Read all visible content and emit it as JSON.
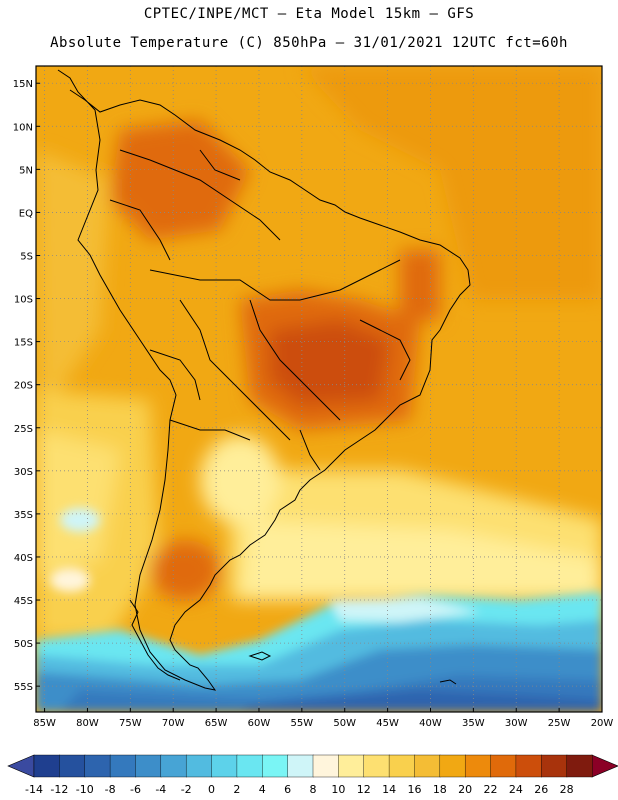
{
  "header": {
    "line1": "CPTEC/INPE/MCT –  Eta Model 15km – GFS",
    "line2": "Absolute Temperature (C) 850hPa – 31/01/2021 12UTC fct=60h"
  },
  "map": {
    "lat_labels": [
      "15N",
      "10N",
      "5N",
      "EQ",
      "5S",
      "10S",
      "15S",
      "20S",
      "25S",
      "30S",
      "35S",
      "40S",
      "45S",
      "50S",
      "55S"
    ],
    "lon_labels": [
      "85W",
      "80W",
      "75W",
      "70W",
      "65W",
      "60W",
      "55W",
      "50W",
      "45W",
      "40W",
      "35W",
      "30W",
      "25W",
      "20W"
    ],
    "lat_min": -58,
    "lat_max": 17,
    "lon_min": -86,
    "lon_max": -20
  },
  "colorbar": {
    "ticks": [
      "-14",
      "-12",
      "-10",
      "-8",
      "-6",
      "-4",
      "-2",
      "0",
      "2",
      "4",
      "6",
      "8",
      "10",
      "12",
      "14",
      "16",
      "18",
      "20",
      "22",
      "24",
      "26",
      "28"
    ],
    "colors": [
      "#1f3f8f",
      "#25519e",
      "#2d64ae",
      "#3479bd",
      "#3d8ec9",
      "#47a4d5",
      "#52bbe0",
      "#5dd2ea",
      "#6ae6f1",
      "#7af5f5",
      "#cff5f8",
      "#fff5dc",
      "#ffee9a",
      "#fde071",
      "#f9d04d",
      "#f4bd35",
      "#f1a813",
      "#ed8a0c",
      "#e06a0a",
      "#cc4e0b",
      "#a8330c",
      "#7f1b0e"
    ],
    "low_color": "#3a4aa0",
    "high_color": "#8b0026"
  }
}
